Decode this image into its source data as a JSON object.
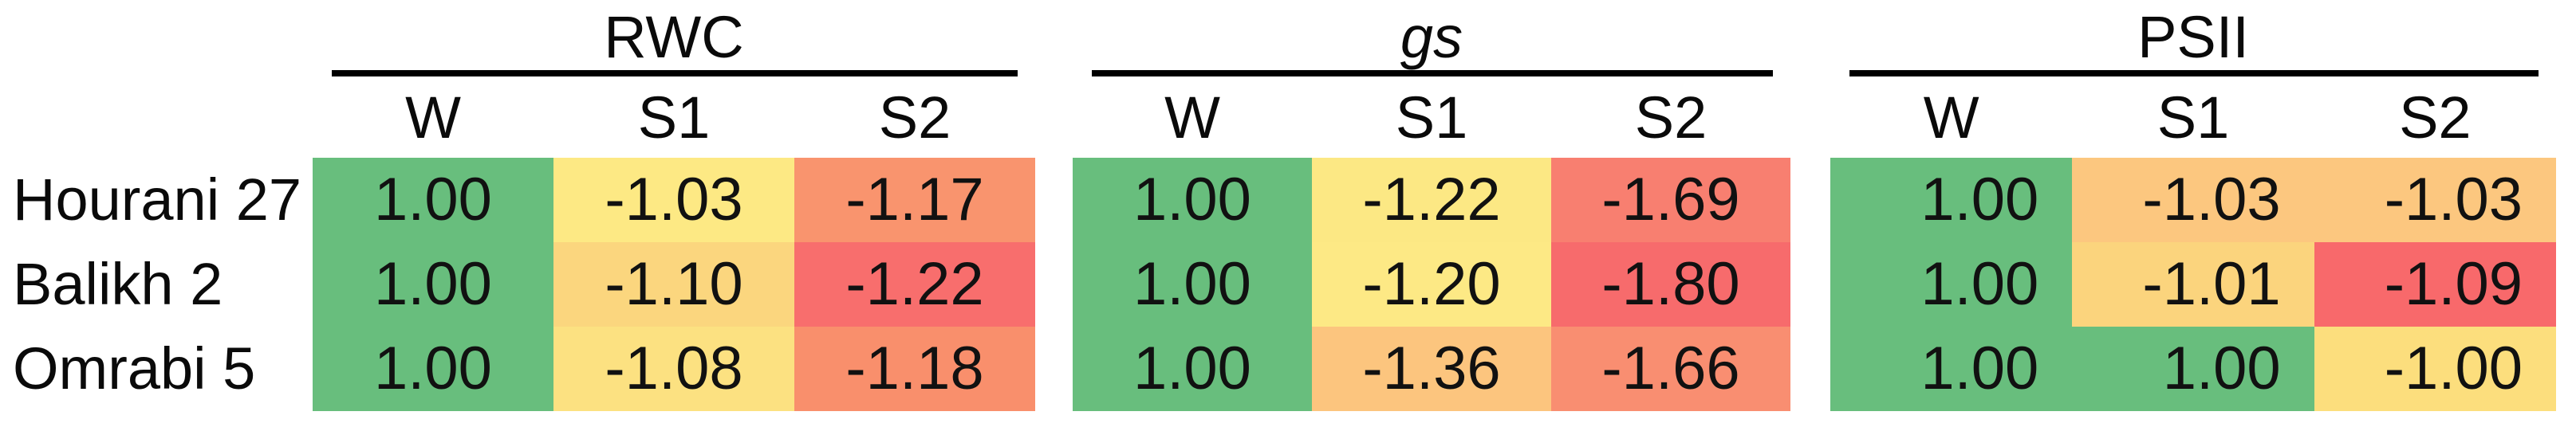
{
  "groups": [
    {
      "title": "RWC",
      "cols": [
        "W",
        "S1",
        "S2"
      ]
    },
    {
      "title": "gs",
      "cols": [
        "W",
        "S1",
        "S2"
      ]
    },
    {
      "title": "PSII",
      "cols": [
        "W",
        "S1",
        "S2"
      ]
    }
  ],
  "rows": [
    {
      "label": "Hourani 27",
      "values": [
        [
          "1.00",
          "-1.03",
          "-1.17"
        ],
        [
          "1.00",
          "-1.22",
          "-1.69"
        ],
        [
          "1.00",
          "-1.03",
          "-1.03"
        ]
      ],
      "bg": [
        [
          "#68BE7D",
          "#FDE984",
          "#F9946E"
        ],
        [
          "#68BE7D",
          "#FCE884",
          "#F87F70"
        ],
        [
          "#68BE7D",
          "#FCC77F",
          "#FCC77F"
        ]
      ]
    },
    {
      "label": "Balikh 2",
      "values": [
        [
          "1.00",
          "-1.10",
          "-1.22"
        ],
        [
          "1.00",
          "-1.20",
          "-1.80"
        ],
        [
          "1.00",
          "-1.01",
          "-1.09"
        ]
      ],
      "bg": [
        [
          "#68BE7D",
          "#FBD67E",
          "#F86E6D"
        ],
        [
          "#68BE7D",
          "#FDE985",
          "#F76B6C"
        ],
        [
          "#68BE7D",
          "#FBD47D",
          "#F8696B"
        ]
      ]
    },
    {
      "label": "Omrabi 5",
      "values": [
        [
          "1.00",
          "-1.08",
          "-1.18"
        ],
        [
          "1.00",
          "-1.36",
          "-1.66"
        ],
        [
          "1.00",
          "1.00",
          "-1.00"
        ]
      ],
      "bg": [
        [
          "#68BE7D",
          "#FCE181",
          "#F98F6C"
        ],
        [
          "#68BE7D",
          "#FCC57E",
          "#F98E71"
        ],
        [
          "#68BE7D",
          "#68BE7D",
          "#FCDE7D"
        ]
      ]
    }
  ],
  "chart_data": {
    "type": "heatmap",
    "title": "",
    "row_labels": [
      "Hourani 27",
      "Balikh 2",
      "Omrabi 5"
    ],
    "column_groups": [
      "RWC",
      "gs",
      "PSII"
    ],
    "columns_per_group": [
      "W",
      "S1",
      "S2"
    ],
    "values": {
      "RWC": [
        [
          1.0,
          -1.03,
          -1.17
        ],
        [
          1.0,
          -1.1,
          -1.22
        ],
        [
          1.0,
          -1.08,
          -1.18
        ]
      ],
      "gs": [
        [
          1.0,
          -1.22,
          -1.69
        ],
        [
          1.0,
          -1.2,
          -1.8
        ],
        [
          1.0,
          -1.36,
          -1.66
        ]
      ],
      "PSII": [
        [
          1.0,
          -1.03,
          -1.03
        ],
        [
          1.0,
          -1.01,
          -1.09
        ],
        [
          1.0,
          1.0,
          -1.0
        ]
      ]
    },
    "layout_hints": {
      "legend": "none",
      "grid": "off",
      "cell_text_align": {
        "RWC": "center",
        "gs": "center",
        "PSII": "right"
      }
    },
    "color_scale": {
      "high_positive": "#68BE7D",
      "mid_yellow": "#FDE984",
      "low_negative": "#F8696B"
    }
  }
}
